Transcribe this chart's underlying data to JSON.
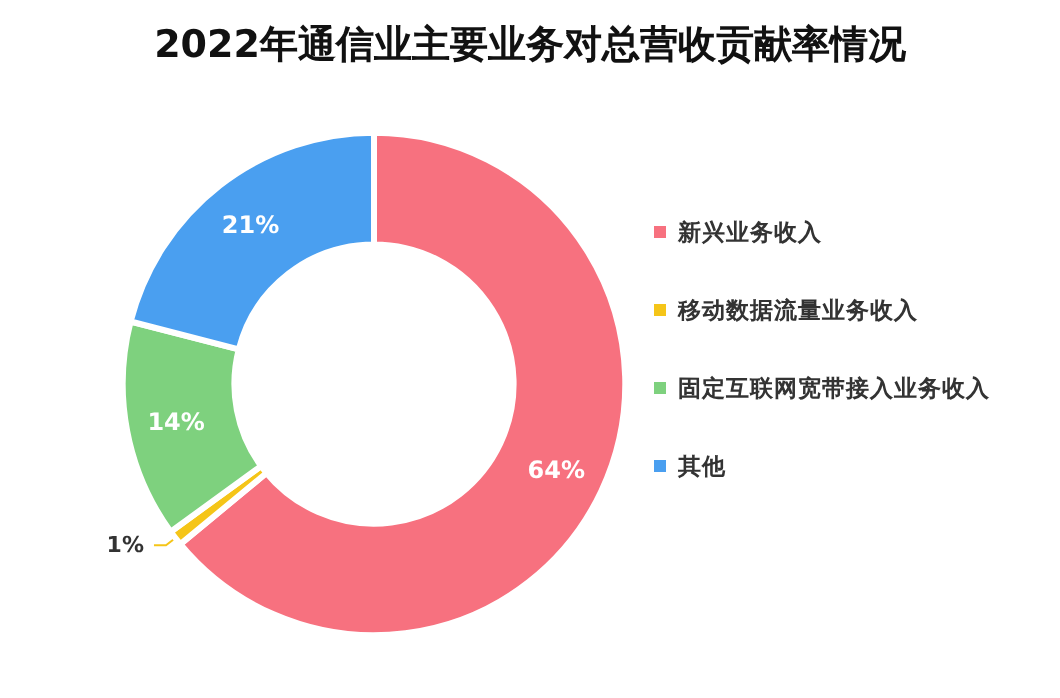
{
  "chart_data": {
    "type": "donut",
    "title": "2022年通信业主要业务对总营收贡献率情况",
    "categories": [
      "新兴业务收入",
      "移动数据流量业务收入",
      "固定互联网宽带接入业务收入",
      "其他"
    ],
    "values": [
      64,
      1,
      14,
      21
    ],
    "colors": [
      "#f7717f",
      "#f5c518",
      "#7ed17e",
      "#4a9ff0"
    ],
    "value_labels": [
      "64%",
      "1%",
      "14%",
      "21%"
    ],
    "legend": "right"
  }
}
